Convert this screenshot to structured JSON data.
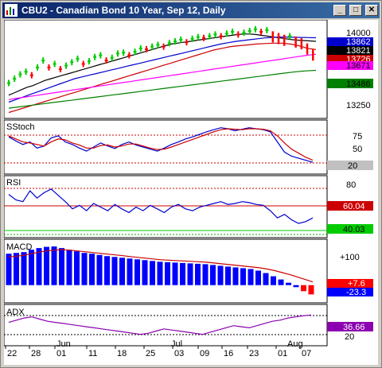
{
  "window": {
    "title": "CBU2 - Canadian Bond 10 Year, Sep 12, Daily",
    "minimize_glyph": "_",
    "maximize_glyph": "□",
    "close_glyph": "✕",
    "icons": [
      "chart-icon",
      "minimize-icon",
      "maximize-icon",
      "close-icon"
    ]
  },
  "colors": {
    "price_up": "#00cc00",
    "price_down": "#ff0000",
    "ma_black": "#000000",
    "ma_red": "#cc0000",
    "ma_blue": "#0000cc",
    "ma_magenta": "#ff00ff",
    "ma_green": "#008000",
    "stoch_k": "#0000cc",
    "stoch_d": "#cc0000",
    "macd_bar": "#0000ff",
    "macd_signal": "#cc0000",
    "adx_line": "#8b00b0"
  },
  "price_panel": {
    "axis_labels": [
      "14000",
      "13486"
    ],
    "axis_label_extra": "13250",
    "value_badges": [
      {
        "text": "13862",
        "bg": "#0000cc",
        "fg": "#ffffff"
      },
      {
        "text": "13821",
        "bg": "#000000",
        "fg": "#ffffff"
      },
      {
        "text": "13726",
        "bg": "#cc0000",
        "fg": "#ffffff"
      },
      {
        "text": "13671",
        "bg": "#ff00ff",
        "fg": "#000000"
      },
      {
        "text": "13486",
        "bg": "#008000",
        "fg": "#000000"
      }
    ]
  },
  "stoch_panel": {
    "label": "SStoch",
    "axis_labels": [
      "75",
      "50"
    ],
    "value_badges": [
      {
        "text": "20",
        "bg": "#c0c0c0",
        "fg": "#000000"
      }
    ]
  },
  "rsi_panel": {
    "label": "RSI",
    "axis_labels": [
      "80"
    ],
    "value_badges": [
      {
        "text": "60.04",
        "bg": "#cc0000",
        "fg": "#ffffff"
      },
      {
        "text": "40.03",
        "bg": "#00cc00",
        "fg": "#000000"
      }
    ]
  },
  "macd_panel": {
    "label": "MACD",
    "axis_labels": [
      "+100"
    ],
    "value_badges": [
      {
        "text": "+7.6",
        "bg": "#ff0000",
        "fg": "#ffffff"
      },
      {
        "text": "-23.3",
        "bg": "#0000ff",
        "fg": "#ffffff"
      }
    ]
  },
  "adx_panel": {
    "label": "ADX",
    "axis_labels": [
      "20"
    ],
    "value_badges": [
      {
        "text": "36.66",
        "bg": "#8b00b0",
        "fg": "#ffffff"
      }
    ]
  },
  "x_axis": {
    "day_labels": [
      "22",
      "28",
      "01",
      "11",
      "18",
      "25",
      "03",
      "09",
      "16",
      "23",
      "01",
      "07"
    ],
    "month_labels": [
      "Jun",
      "Jul",
      "Aug"
    ]
  },
  "chart_data": {
    "type": "line",
    "series": [
      {
        "values": [
          13340,
          13390,
          13440,
          13470,
          13430,
          13520,
          13600,
          13520,
          13560,
          13500,
          13540,
          13580,
          13620,
          13560,
          13590,
          13640,
          13660,
          13600,
          13630,
          13680,
          13690,
          13660,
          13700,
          13740,
          13730,
          13760,
          13780,
          13760,
          13800,
          13820,
          13840,
          13810,
          13850,
          13870,
          13860,
          13880,
          13900,
          13880,
          13910,
          13930,
          13900,
          13920,
          13940,
          13960,
          13930,
          13950,
          13900,
          13880,
          13860,
          13880,
          13840,
          13820,
          13760,
          13690
        ]
      },
      {
        "values": [
          13200,
          13230,
          13260,
          13290,
          13310,
          13340,
          13370,
          13390,
          13410,
          13430,
          13450,
          13470,
          13490,
          13510,
          13530,
          13550,
          13570,
          13590,
          13610,
          13630,
          13650,
          13670,
          13690,
          13710,
          13730,
          13750,
          13770,
          13790,
          13800,
          13810,
          13820,
          13830,
          13840,
          13850,
          13860,
          13870,
          13880,
          13890,
          13900,
          13905,
          13905,
          13900,
          13890,
          13880,
          13870,
          13860,
          13850,
          13840,
          13835,
          13830,
          13825,
          13821
        ]
      },
      {
        "values": [
          13120,
          13150,
          13180,
          13210,
          13240,
          13270,
          13300,
          13330,
          13360,
          13390,
          13410,
          13430,
          13450,
          13470,
          13490,
          13510,
          13530,
          13550,
          13570,
          13590,
          13610,
          13630,
          13650,
          13670,
          13690,
          13710,
          13730,
          13750,
          13770,
          13790,
          13805,
          13820,
          13830,
          13840,
          13850,
          13860,
          13865,
          13870,
          13870,
          13868,
          13866,
          13864,
          13862
        ]
      },
      {
        "values": [
          13000,
          13030,
          13060,
          13090,
          13120,
          13150,
          13180,
          13210,
          13240,
          13270,
          13300,
          13330,
          13360,
          13390,
          13420,
          13450,
          13480,
          13510,
          13540,
          13570,
          13600,
          13630,
          13660,
          13690,
          13720,
          13740,
          13760,
          13770,
          13780,
          13790,
          13795,
          13800,
          13800,
          13790,
          13770,
          13740,
          13726
        ]
      },
      {
        "values": [
          13150,
          13165,
          13180,
          13195,
          13210,
          13225,
          13240,
          13255,
          13270,
          13285,
          13300,
          13315,
          13330,
          13345,
          13360,
          13375,
          13390,
          13405,
          13420,
          13435,
          13450,
          13465,
          13480,
          13495,
          13510,
          13525,
          13540,
          13555,
          13570,
          13585,
          13600,
          13615,
          13630,
          13645,
          13660,
          13671
        ]
      },
      {
        "values": [
          13050,
          13065,
          13080,
          13095,
          13110,
          13125,
          13140,
          13155,
          13170,
          13185,
          13200,
          13215,
          13230,
          13245,
          13260,
          13275,
          13290,
          13305,
          13320,
          13335,
          13350,
          13365,
          13380,
          13395,
          13410,
          13425,
          13440,
          13455,
          13470,
          13480,
          13486
        ]
      }
    ],
    "indicators": {
      "stoch_k": [
        70,
        62,
        55,
        60,
        48,
        52,
        68,
        72,
        60,
        55,
        48,
        42,
        50,
        58,
        52,
        47,
        55,
        60,
        54,
        50,
        46,
        42,
        48,
        55,
        60,
        66,
        70,
        75,
        80,
        84,
        88,
        86,
        82,
        85,
        88,
        86,
        84,
        80,
        60,
        40,
        32,
        28,
        24,
        20
      ],
      "stoch_d": [
        72,
        66,
        60,
        58,
        55,
        52,
        60,
        66,
        64,
        58,
        54,
        48,
        48,
        53,
        54,
        50,
        52,
        56,
        56,
        52,
        48,
        45,
        46,
        50,
        55,
        60,
        65,
        70,
        75,
        80,
        84,
        86,
        85,
        84,
        86,
        86,
        85,
        82,
        72,
        58,
        46,
        38,
        30,
        24
      ],
      "rsi": [
        66,
        60,
        58,
        70,
        62,
        68,
        72,
        65,
        58,
        50,
        54,
        48,
        56,
        52,
        48,
        55,
        50,
        46,
        52,
        48,
        54,
        50,
        46,
        52,
        55,
        50,
        48,
        52,
        54,
        56,
        58,
        55,
        56,
        58,
        57,
        55,
        54,
        48,
        40,
        44,
        38,
        34,
        36,
        40
      ],
      "macd": [
        78,
        80,
        82,
        88,
        92,
        95,
        96,
        92,
        88,
        84,
        80,
        78,
        75,
        72,
        70,
        68,
        66,
        64,
        62,
        60,
        58,
        57,
        56,
        55,
        54,
        53,
        52,
        50,
        48,
        46,
        44,
        42,
        40,
        36,
        30,
        22,
        14,
        6,
        -5,
        -15,
        -23
      ],
      "macd_signal": [
        70,
        72,
        74,
        78,
        82,
        85,
        87,
        88,
        87,
        85,
        83,
        81,
        79,
        77,
        75,
        73,
        71,
        69,
        67,
        65,
        63,
        62,
        61,
        60,
        59,
        58,
        57,
        55,
        53,
        51,
        49,
        47,
        45,
        43,
        40,
        36,
        31,
        26,
        20,
        14,
        8
      ],
      "adx": [
        30,
        32,
        34,
        35,
        33,
        31,
        30,
        29,
        28,
        27,
        26,
        25,
        24,
        23,
        22,
        21,
        20,
        19,
        20,
        22,
        24,
        23,
        22,
        21,
        20,
        19,
        21,
        23,
        25,
        27,
        26,
        25,
        27,
        29,
        31,
        32,
        34,
        35,
        36,
        36.66
      ]
    }
  }
}
